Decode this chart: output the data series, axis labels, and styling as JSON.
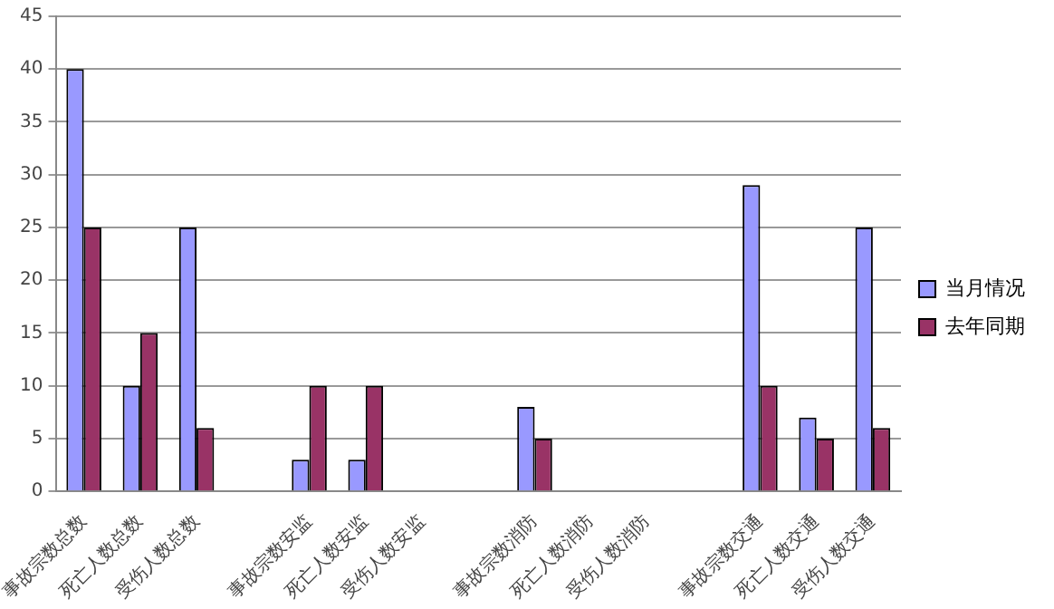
{
  "chart_data": {
    "type": "bar",
    "categories": [
      "事故宗数总数",
      "死亡人数总数",
      "受伤人数总数",
      null,
      "事故宗数安监",
      "死亡人数安监",
      "受伤人数安监",
      null,
      "事故宗数消防",
      "死亡人数消防",
      "受伤人数消防",
      null,
      "事故宗数交通",
      "死亡人数交通",
      "受伤人数交通"
    ],
    "series": [
      {
        "name": "当月情况",
        "color": "#9999ff",
        "values": [
          40,
          10,
          25,
          null,
          3,
          3,
          null,
          null,
          8,
          null,
          null,
          null,
          29,
          7,
          25
        ]
      },
      {
        "name": "去年同期",
        "color": "#993366",
        "values": [
          25,
          15,
          6,
          null,
          10,
          10,
          null,
          null,
          5,
          null,
          null,
          null,
          10,
          5,
          6
        ]
      }
    ],
    "ylim": [
      0,
      45
    ],
    "yticks": [
      0,
      5,
      10,
      15,
      20,
      25,
      30,
      35,
      40,
      45
    ],
    "grid": "y",
    "legend": "right"
  }
}
